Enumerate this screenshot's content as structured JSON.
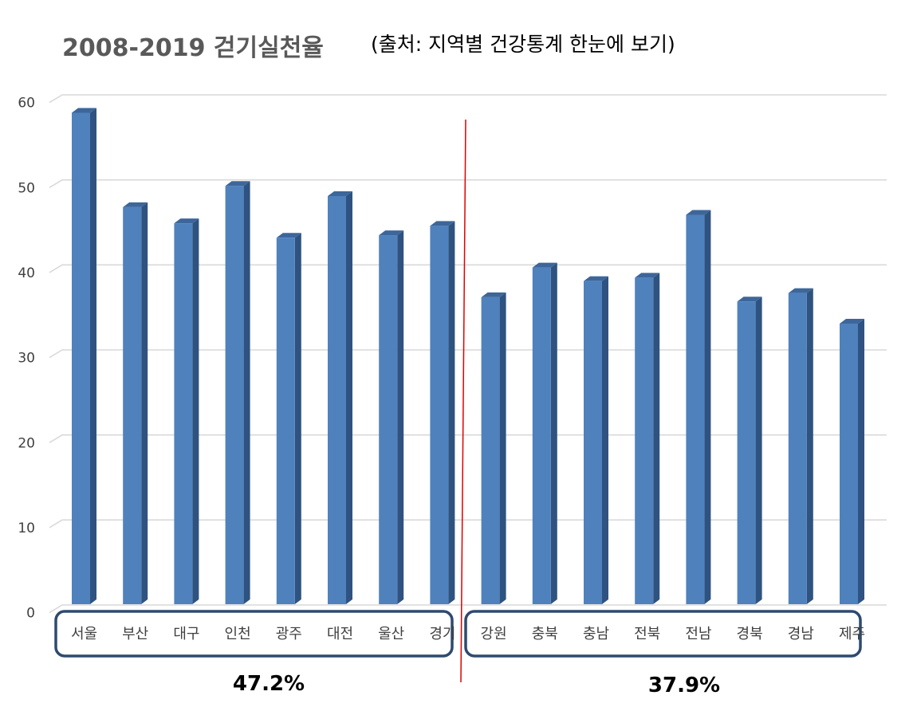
{
  "chart_data": {
    "type": "bar",
    "title": "2008-2019 걷기실천율",
    "subtitle": "(출처: 지역별 건강통계 한눈에 보기)",
    "categories": [
      "서울",
      "부산",
      "대구",
      "인천",
      "광주",
      "대전",
      "울산",
      "경기",
      "강원",
      "충북",
      "충남",
      "전북",
      "전남",
      "경북",
      "경남",
      "제주"
    ],
    "values": [
      57.8,
      46.7,
      44.8,
      49.2,
      43.1,
      48.0,
      43.4,
      44.5,
      36.1,
      39.6,
      38.0,
      38.4,
      45.8,
      35.6,
      36.6,
      33.0
    ],
    "ylim": [
      0,
      60
    ],
    "yticks": [
      0,
      10,
      20,
      30,
      40,
      50,
      60
    ],
    "grid": true,
    "groups": [
      {
        "label": "47.2%",
        "first": 0,
        "last": 7
      },
      {
        "label": "37.9%",
        "first": 8,
        "last": 15
      }
    ],
    "colors": {
      "bar_front": "#4f81bd",
      "bar_side": "#2f5380",
      "bar_top": "#3d669a",
      "grid": "#d9d9d9",
      "divider": "#e00000",
      "group_box": "#2e4a6e",
      "title": "#595959",
      "subtitle": "#000000",
      "tick": "#404040"
    }
  }
}
